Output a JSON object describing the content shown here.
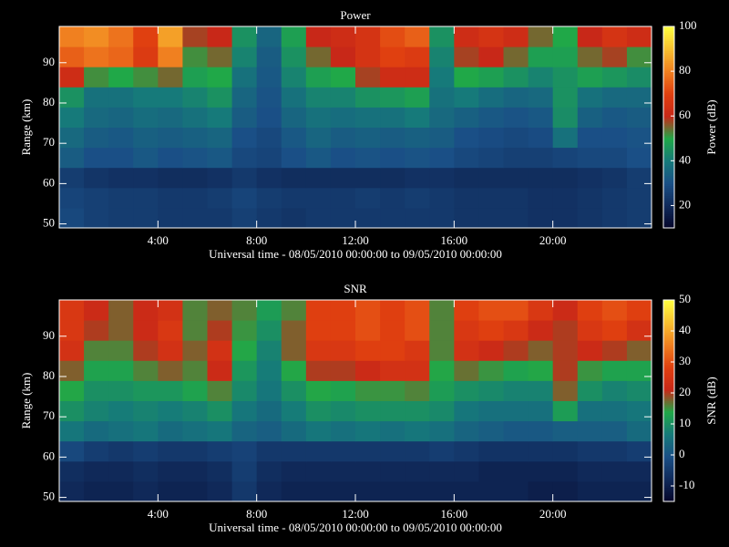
{
  "chart_data": [
    {
      "type": "heatmap",
      "title": "Power",
      "xlabel": "Universal time - 08/05/2010 00:00:00 to 09/05/2010 00:00:00",
      "ylabel": "Range (km)",
      "colorbar_label": "Power (dB)",
      "xlim": [
        0,
        24
      ],
      "ylim": [
        49,
        99
      ],
      "xticks": [
        {
          "value": 4,
          "label": "4:00"
        },
        {
          "value": 8,
          "label": "8:00"
        },
        {
          "value": 12,
          "label": "12:00"
        },
        {
          "value": 16,
          "label": "16:00"
        },
        {
          "value": 20,
          "label": "20:00"
        }
      ],
      "yticks": [
        50,
        60,
        70,
        80,
        90
      ],
      "clim": [
        10,
        100
      ],
      "cticks": [
        20,
        40,
        60,
        80,
        100
      ],
      "colorscale": [
        "#05052a",
        "#102a5a",
        "#1a4f86",
        "#167a7a",
        "#20a848",
        "#c82818",
        "#e04010",
        "#f08020",
        "#f8c030",
        "#ffff40"
      ],
      "xbins": [
        0,
        1,
        2,
        3,
        4,
        5,
        6,
        7,
        8,
        9,
        10,
        11,
        12,
        13,
        14,
        15,
        16,
        17,
        18,
        19,
        20,
        21,
        22,
        23,
        24
      ],
      "ybins": [
        49,
        54,
        59,
        64,
        69,
        74,
        79,
        84,
        89,
        94,
        99
      ],
      "values": [
        [
          28,
          26,
          25,
          25,
          24,
          24,
          24,
          26,
          24,
          23,
          24,
          24,
          24,
          24,
          24,
          24,
          23,
          23,
          23,
          22,
          22,
          23,
          24,
          25
        ],
        [
          27,
          26,
          25,
          25,
          24,
          24,
          25,
          27,
          25,
          24,
          24,
          24,
          25,
          24,
          25,
          24,
          23,
          23,
          23,
          22,
          22,
          23,
          24,
          25
        ],
        [
          25,
          23,
          22,
          22,
          21,
          21,
          22,
          24,
          22,
          21,
          21,
          21,
          21,
          21,
          22,
          22,
          21,
          21,
          21,
          21,
          21,
          22,
          23,
          25
        ],
        [
          33,
          30,
          30,
          32,
          30,
          31,
          32,
          28,
          27,
          30,
          32,
          30,
          31,
          30,
          31,
          30,
          28,
          27,
          26,
          26,
          27,
          28,
          28,
          30
        ],
        [
          36,
          33,
          32,
          34,
          33,
          34,
          35,
          30,
          28,
          32,
          35,
          33,
          34,
          33,
          34,
          33,
          30,
          29,
          28,
          29,
          38,
          30,
          30,
          31
        ],
        [
          40,
          36,
          35,
          37,
          36,
          38,
          40,
          33,
          30,
          35,
          38,
          37,
          38,
          38,
          40,
          36,
          34,
          32,
          31,
          32,
          44,
          34,
          32,
          33
        ],
        [
          45,
          38,
          38,
          40,
          40,
          42,
          45,
          35,
          31,
          38,
          42,
          42,
          45,
          46,
          48,
          38,
          40,
          37,
          35,
          36,
          45,
          38,
          36,
          36
        ],
        [
          62,
          52,
          50,
          52,
          55,
          48,
          50,
          38,
          32,
          42,
          48,
          50,
          58,
          62,
          62,
          40,
          50,
          48,
          45,
          42,
          45,
          48,
          46,
          44
        ],
        [
          75,
          78,
          76,
          68,
          80,
          52,
          55,
          42,
          33,
          45,
          55,
          60,
          65,
          70,
          68,
          42,
          58,
          60,
          55,
          48,
          48,
          55,
          58,
          52
        ],
        [
          80,
          82,
          78,
          70,
          85,
          58,
          60,
          45,
          35,
          48,
          60,
          62,
          65,
          72,
          75,
          45,
          62,
          65,
          62,
          55,
          50,
          60,
          65,
          62
        ]
      ]
    },
    {
      "type": "heatmap",
      "title": "SNR",
      "xlabel": "Universal time - 08/05/2010 00:00:00 to 09/05/2010 00:00:00",
      "ylabel": "Range (km)",
      "colorbar_label": "SNR (dB)",
      "xlim": [
        0,
        24
      ],
      "ylim": [
        49,
        99
      ],
      "xticks": [
        {
          "value": 4,
          "label": "4:00"
        },
        {
          "value": 8,
          "label": "8:00"
        },
        {
          "value": 12,
          "label": "12:00"
        },
        {
          "value": 16,
          "label": "16:00"
        },
        {
          "value": 20,
          "label": "20:00"
        }
      ],
      "yticks": [
        50,
        60,
        70,
        80,
        90
      ],
      "clim": [
        -15,
        50
      ],
      "cticks": [
        -10,
        0,
        10,
        20,
        30,
        40,
        50
      ],
      "colorscale": [
        "#05052a",
        "#102a5a",
        "#1a4f86",
        "#167a7a",
        "#20a848",
        "#c82818",
        "#e04010",
        "#f08020",
        "#f8c030",
        "#ffff40"
      ],
      "xbins": [
        0,
        1,
        2,
        3,
        4,
        5,
        6,
        7,
        8,
        9,
        10,
        11,
        12,
        13,
        14,
        15,
        16,
        17,
        18,
        19,
        20,
        21,
        22,
        23,
        24
      ],
      "ybins": [
        49,
        54,
        59,
        64,
        69,
        74,
        79,
        84,
        89,
        94,
        99
      ],
      "values": [
        [
          -8,
          -9,
          -9,
          -8,
          -9,
          -9,
          -8,
          -5,
          -8,
          -9,
          -9,
          -9,
          -9,
          -9,
          -9,
          -9,
          -9,
          -9,
          -9,
          -10,
          -10,
          -9,
          -9,
          -9
        ],
        [
          -7,
          -8,
          -8,
          -7,
          -8,
          -8,
          -7,
          -4,
          -7,
          -8,
          -8,
          -8,
          -8,
          -8,
          -8,
          -8,
          -8,
          -9,
          -9,
          -9,
          -9,
          -8,
          -8,
          -8
        ],
        [
          -2,
          -4,
          -5,
          -4,
          -5,
          -5,
          -4,
          -3,
          -5,
          -5,
          -5,
          -5,
          -5,
          -5,
          -5,
          -4,
          -5,
          -6,
          -6,
          -6,
          -6,
          -5,
          -5,
          -4
        ],
        [
          6,
          4,
          5,
          6,
          4,
          5,
          6,
          3,
          2,
          4,
          6,
          5,
          6,
          5,
          6,
          5,
          3,
          2,
          1,
          1,
          2,
          2,
          2,
          4
        ],
        [
          10,
          8,
          7,
          8,
          7,
          8,
          10,
          6,
          4,
          7,
          10,
          9,
          10,
          10,
          10,
          9,
          6,
          5,
          5,
          5,
          12,
          5,
          5,
          6
        ],
        [
          14,
          10,
          10,
          11,
          11,
          13,
          16,
          9,
          6,
          10,
          14,
          13,
          15,
          15,
          16,
          12,
          10,
          9,
          8,
          8,
          18,
          10,
          8,
          9
        ],
        [
          18,
          13,
          13,
          16,
          18,
          16,
          22,
          11,
          7,
          14,
          20,
          20,
          22,
          24,
          24,
          14,
          17,
          15,
          13,
          14,
          20,
          15,
          13,
          13
        ],
        [
          24,
          16,
          16,
          20,
          24,
          18,
          24,
          14,
          8,
          18,
          26,
          26,
          28,
          28,
          26,
          16,
          24,
          22,
          20,
          18,
          20,
          22,
          20,
          18
        ],
        [
          26,
          20,
          18,
          22,
          26,
          16,
          20,
          15,
          10,
          18,
          28,
          28,
          30,
          28,
          30,
          16,
          26,
          28,
          26,
          22,
          20,
          26,
          28,
          24
        ],
        [
          26,
          22,
          18,
          22,
          24,
          16,
          18,
          16,
          12,
          16,
          28,
          28,
          30,
          28,
          30,
          16,
          28,
          30,
          30,
          26,
          22,
          28,
          30,
          28
        ]
      ]
    }
  ]
}
